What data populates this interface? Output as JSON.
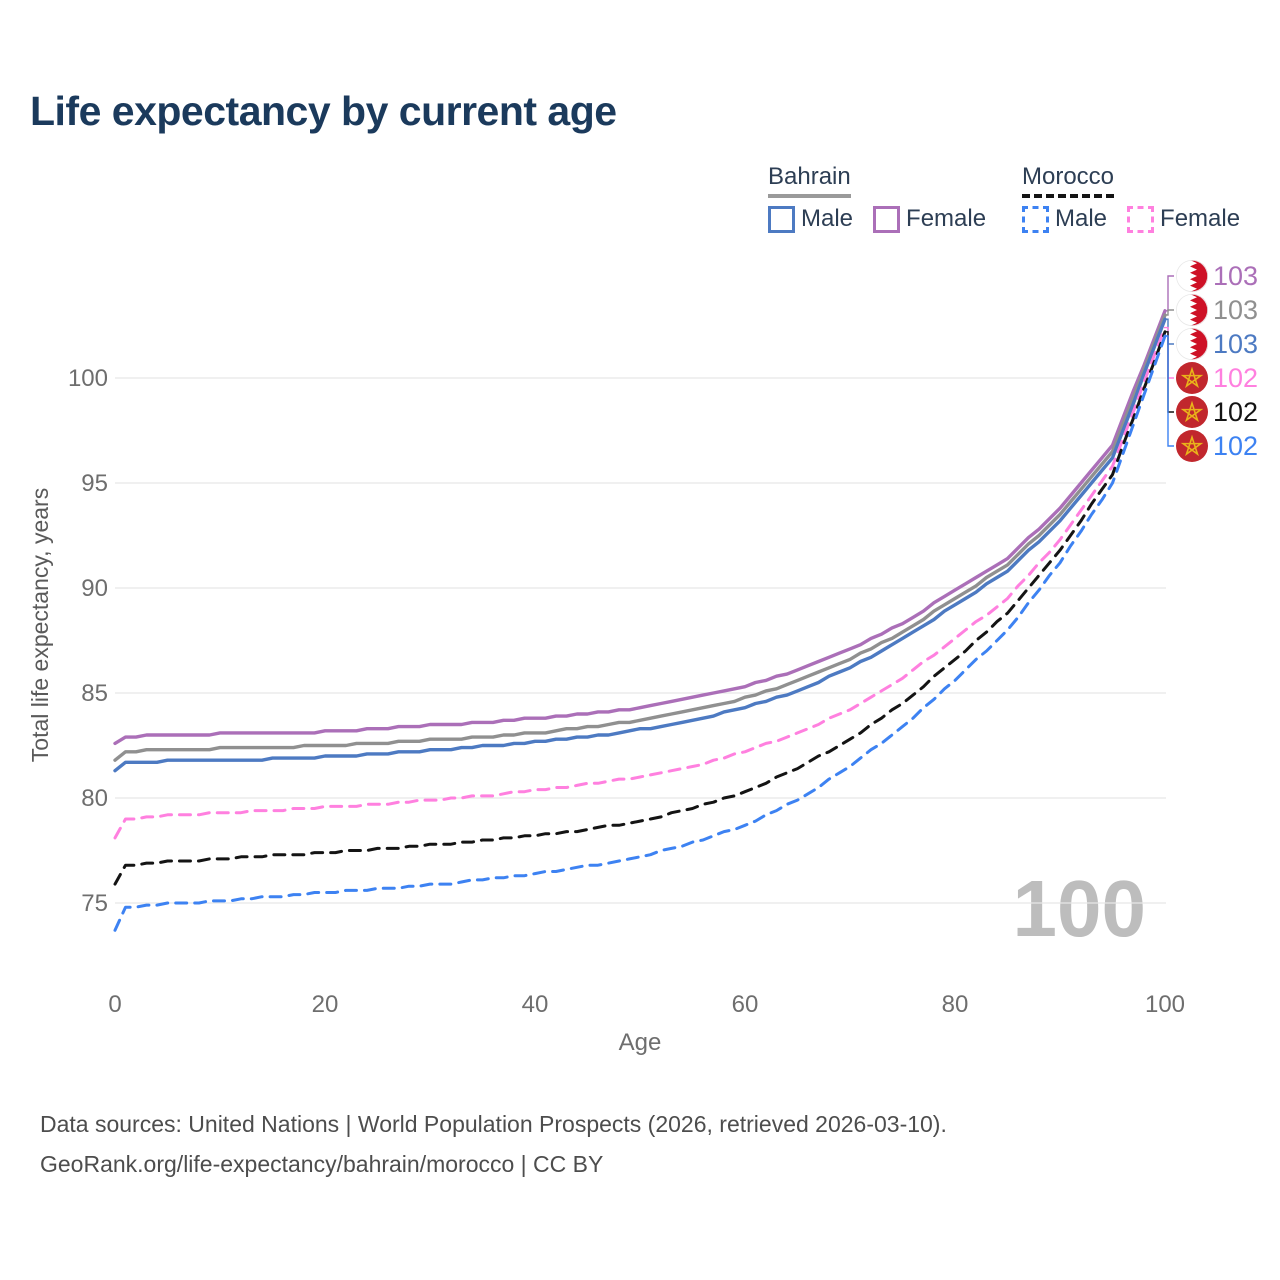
{
  "title": "Life expectancy by current age",
  "watermark": "100",
  "legend": {
    "groups": [
      {
        "country": "Bahrain",
        "line_style": "solid",
        "underline_color": "#9a9a9a",
        "items": [
          {
            "label": "Male",
            "color": "#4d7ac2"
          },
          {
            "label": "Female",
            "color": "#ab6fb8"
          }
        ]
      },
      {
        "country": "Morocco",
        "line_style": "dashed",
        "underline_color": "#141414",
        "items": [
          {
            "label": "Male",
            "color": "#3d82f2"
          },
          {
            "label": "Female",
            "color": "#ff80df"
          }
        ]
      }
    ]
  },
  "chart_data": {
    "type": "line",
    "title": "Life expectancy by current age",
    "xlabel": "Age",
    "ylabel": "Total life expectancy, years",
    "x_ticks": [
      0,
      20,
      40,
      60,
      80,
      100
    ],
    "y_ticks": [
      75,
      80,
      85,
      90,
      95,
      100
    ],
    "xlim": [
      0,
      100
    ],
    "ylim": [
      73,
      104
    ],
    "grid": "horizontal",
    "legend_position": "top-right",
    "ages": [
      0,
      1,
      5,
      10,
      15,
      20,
      25,
      30,
      35,
      40,
      45,
      50,
      55,
      60,
      65,
      70,
      75,
      80,
      85,
      90,
      95,
      100
    ],
    "series": [
      {
        "name": "Bahrain Female",
        "country": "Bahrain",
        "sex": "Female",
        "color": "#ab6fb8",
        "dash": false,
        "flag": "bahrain",
        "end_label": "103",
        "values": [
          82.6,
          82.9,
          83.0,
          83.05,
          83.1,
          83.15,
          83.3,
          83.45,
          83.6,
          83.8,
          84.0,
          84.3,
          84.75,
          85.3,
          86.1,
          87.1,
          88.3,
          89.9,
          91.4,
          93.8,
          96.8,
          103.2
        ]
      },
      {
        "name": "Bahrain Both sexes",
        "country": "Bahrain",
        "sex": "Both",
        "color": "#909090",
        "dash": false,
        "flag": "bahrain",
        "end_label": "103",
        "values": [
          81.8,
          82.2,
          82.3,
          82.35,
          82.4,
          82.5,
          82.6,
          82.75,
          82.9,
          83.1,
          83.35,
          83.7,
          84.15,
          84.75,
          85.55,
          86.6,
          87.9,
          89.5,
          91.1,
          93.5,
          96.5,
          103.0
        ]
      },
      {
        "name": "Bahrain Male",
        "country": "Bahrain",
        "sex": "Male",
        "color": "#4d7ac2",
        "dash": false,
        "flag": "bahrain",
        "end_label": "103",
        "values": [
          81.3,
          81.7,
          81.75,
          81.8,
          81.85,
          81.95,
          82.1,
          82.25,
          82.45,
          82.65,
          82.9,
          83.25,
          83.7,
          84.3,
          85.1,
          86.2,
          87.55,
          89.2,
          90.8,
          93.2,
          96.2,
          102.8
        ]
      },
      {
        "name": "Morocco Female",
        "country": "Morocco",
        "sex": "Female",
        "color": "#ff80df",
        "dash": true,
        "flag": "morocco",
        "end_label": "102",
        "values": [
          78.1,
          79.0,
          79.15,
          79.3,
          79.4,
          79.55,
          79.7,
          79.9,
          80.1,
          80.35,
          80.65,
          81.0,
          81.5,
          82.2,
          83.1,
          84.2,
          85.7,
          87.6,
          89.5,
          92.3,
          95.8,
          102.4
        ]
      },
      {
        "name": "Morocco Both sexes",
        "country": "Morocco",
        "sex": "Both",
        "color": "#141414",
        "dash": true,
        "flag": "morocco",
        "end_label": "102",
        "values": [
          75.9,
          76.8,
          76.95,
          77.1,
          77.25,
          77.4,
          77.55,
          77.75,
          77.95,
          78.2,
          78.5,
          78.9,
          79.5,
          80.3,
          81.4,
          82.8,
          84.5,
          86.6,
          88.8,
          91.8,
          95.4,
          102.2
        ]
      },
      {
        "name": "Morocco Male",
        "country": "Morocco",
        "sex": "Male",
        "color": "#3d82f2",
        "dash": true,
        "flag": "morocco",
        "end_label": "102",
        "values": [
          73.7,
          74.8,
          74.95,
          75.1,
          75.3,
          75.5,
          75.65,
          75.85,
          76.1,
          76.4,
          76.75,
          77.2,
          77.85,
          78.7,
          79.9,
          81.5,
          83.4,
          85.6,
          88.0,
          91.2,
          95.0,
          102.0
        ]
      }
    ]
  },
  "footer": {
    "line1": "Data sources: United Nations | World Population Prospects (2026, retrieved 2026-03-10).",
    "line2": "GeoRank.org/life-expectancy/bahrain/morocco | CC BY"
  }
}
